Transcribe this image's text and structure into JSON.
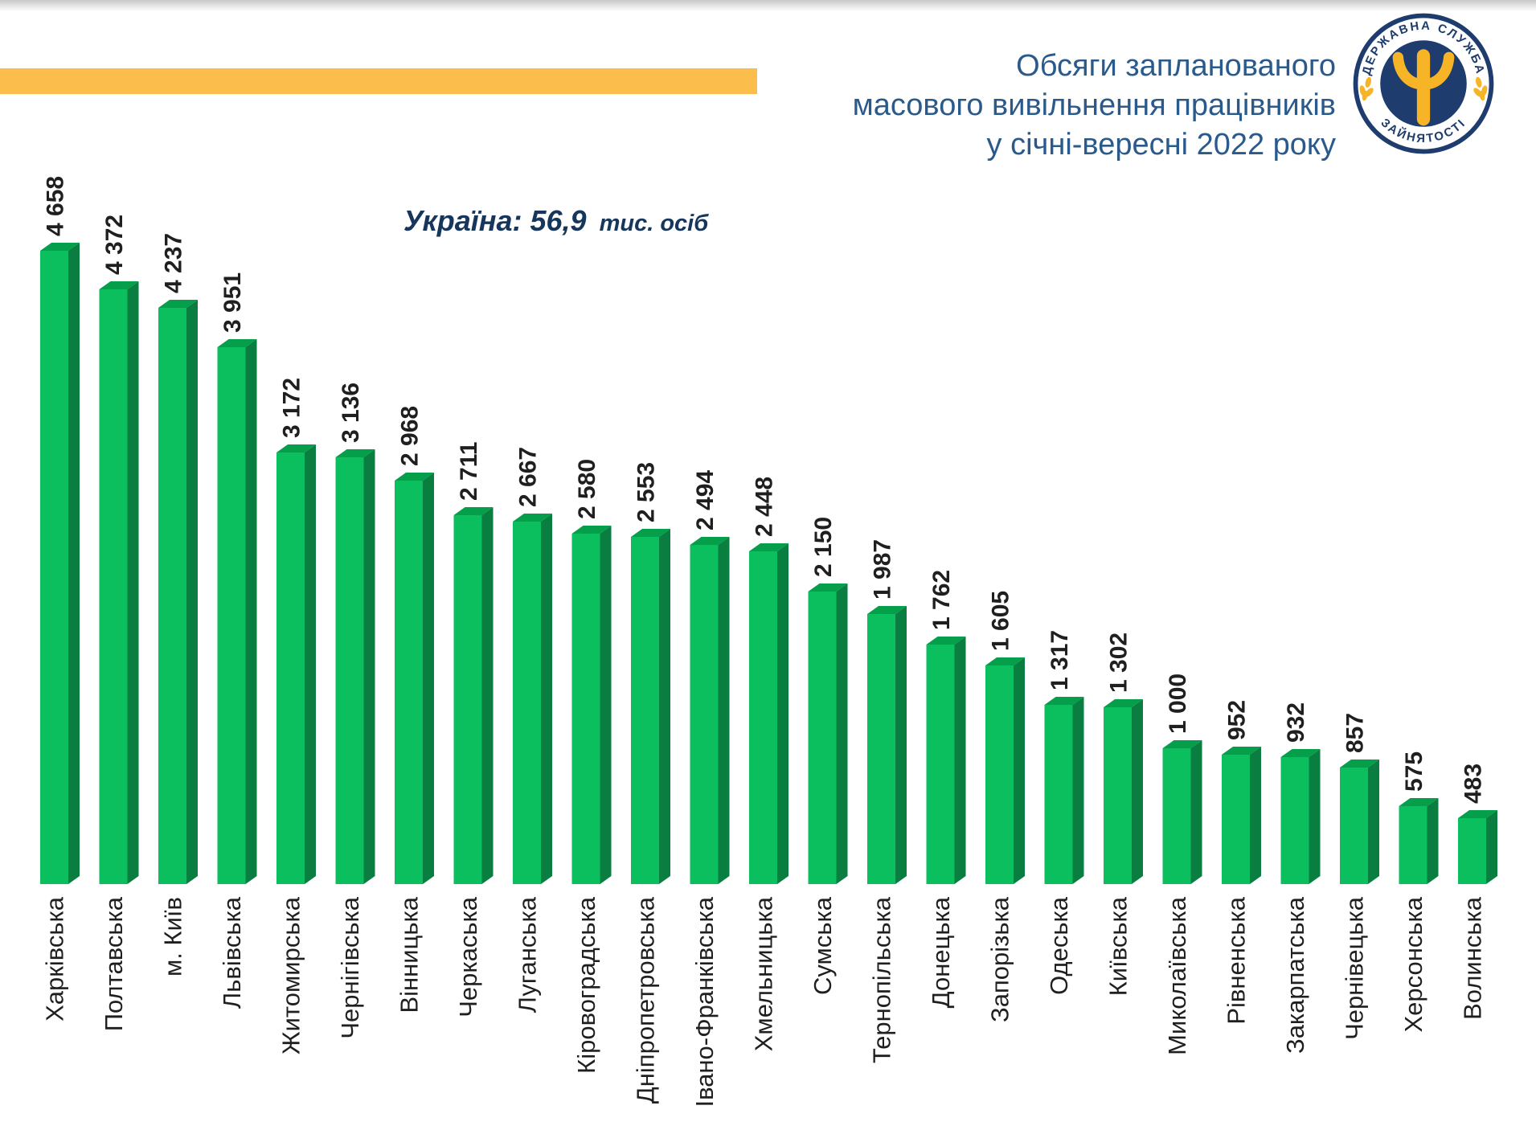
{
  "header": {
    "title_lines": [
      "Обсяги запланованого",
      "масового вивільнення працівників",
      "у січні-вересні 2022 року"
    ],
    "title_color": "#2a5a8c",
    "accent_bar_color": "#fbbe4c",
    "logo": {
      "top_text": "ДЕРЖАВНА СЛУЖБА",
      "bottom_text": "ЗАЙНЯТОСТІ",
      "navy": "#1e3c6e",
      "yellow": "#f6b426"
    }
  },
  "subtitle": {
    "main": "Україна: 56,9",
    "unit": "тис. осіб"
  },
  "chart_data": {
    "type": "bar",
    "title": "Обсяги запланованого масового вивільнення працівників у січні-вересні 2022 року",
    "annotation": "Україна: 56,9 тис. осіб",
    "categories": [
      "Харківська",
      "Полтавська",
      "м. Київ",
      "Львівська",
      "Житомирська",
      "Чернігівська",
      "Вінницька",
      "Черкаська",
      "Луганська",
      "Кіровоградська",
      "Дніпропетровська",
      "Івано-Франківська",
      "Хмельницька",
      "Сумська",
      "Тернопільська",
      "Донецька",
      "Запорізька",
      "Одеська",
      "Київська",
      "Миколаївська",
      "Рівненська",
      "Закарпатська",
      "Чернівецька",
      "Херсонська",
      "Волинська"
    ],
    "values": [
      4658,
      4372,
      4237,
      3951,
      3172,
      3136,
      2968,
      2711,
      2667,
      2580,
      2553,
      2494,
      2448,
      2150,
      1987,
      1762,
      1605,
      1317,
      1302,
      1000,
      952,
      932,
      857,
      575,
      483
    ],
    "value_labels": [
      "4 658",
      "4 372",
      "4 237",
      "3 951",
      "3 172",
      "3 136",
      "2 968",
      "2 711",
      "2 667",
      "2 580",
      "2 553",
      "2 494",
      "2 448",
      "2 150",
      "1 987",
      "1 762",
      "1 605",
      "1 317",
      "1 302",
      "1 000",
      "952",
      "932",
      "857",
      "575",
      "483"
    ],
    "xlabel": "",
    "ylabel": "",
    "ylim": [
      0,
      4658
    ],
    "grid": false,
    "legend": false,
    "bar_style_3d": true,
    "colors": {
      "front": "#0bbf5e",
      "top": "#059f4c",
      "side": "#0a7e40",
      "label": "#1f1f1f"
    }
  }
}
